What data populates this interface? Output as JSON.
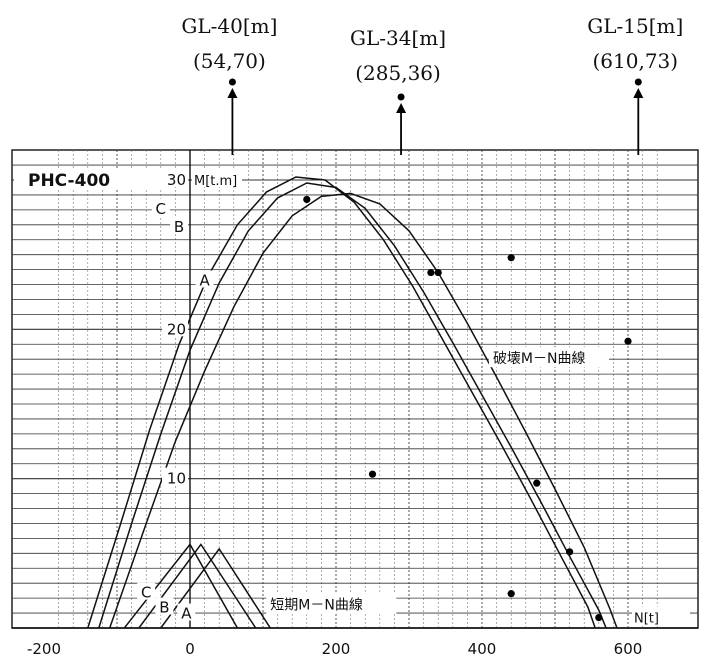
{
  "chart_data": {
    "type": "line",
    "title": "PHC-400",
    "ylabel": "M[t.m]",
    "xlabel": "N[t]",
    "xlim": [
      -230,
      640
    ],
    "ylim": [
      0,
      31
    ],
    "x_ticks": [
      -200,
      0,
      200,
      400,
      600
    ],
    "x_tick_labels": [
      "-200",
      "0",
      "200",
      "400",
      "600"
    ],
    "y_ticks": [
      10,
      20,
      30
    ],
    "y_tick_labels": [
      "10",
      "20",
      "30"
    ],
    "grid": true,
    "series": [
      {
        "name": "A",
        "group": "break",
        "points": [
          [
            -110,
            0
          ],
          [
            -60,
            7
          ],
          [
            -20,
            12.5
          ],
          [
            20,
            17.2
          ],
          [
            60,
            21.5
          ],
          [
            100,
            25.1
          ],
          [
            140,
            27.6
          ],
          [
            180,
            28.9
          ],
          [
            220,
            29.1
          ],
          [
            260,
            28.4
          ],
          [
            300,
            26.6
          ],
          [
            340,
            23.8
          ],
          [
            380,
            20.4
          ],
          [
            420,
            16.8
          ],
          [
            460,
            13.1
          ],
          [
            500,
            9.3
          ],
          [
            540,
            5.4
          ],
          [
            575,
            1.3
          ],
          [
            585,
            0
          ]
        ]
      },
      {
        "name": "B",
        "group": "break",
        "points": [
          [
            -125,
            0
          ],
          [
            -80,
            7
          ],
          [
            -40,
            13
          ],
          [
            0,
            18.6
          ],
          [
            40,
            23.1
          ],
          [
            80,
            26.6
          ],
          [
            120,
            28.8
          ],
          [
            160,
            29.8
          ],
          [
            200,
            29.5
          ],
          [
            240,
            28.1
          ],
          [
            280,
            25.6
          ],
          [
            320,
            22.5
          ],
          [
            360,
            19.1
          ],
          [
            400,
            15.6
          ],
          [
            440,
            12.1
          ],
          [
            480,
            8.5
          ],
          [
            520,
            4.8
          ],
          [
            560,
            1.2
          ],
          [
            570,
            0
          ]
        ]
      },
      {
        "name": "C",
        "group": "break",
        "points": [
          [
            -140,
            0
          ],
          [
            -95,
            7
          ],
          [
            -55,
            13.3
          ],
          [
            -15,
            19
          ],
          [
            25,
            23.6
          ],
          [
            65,
            27
          ],
          [
            105,
            29.2
          ],
          [
            145,
            30.2
          ],
          [
            185,
            30
          ],
          [
            225,
            28.5
          ],
          [
            265,
            26
          ],
          [
            305,
            22.9
          ],
          [
            345,
            19.4
          ],
          [
            385,
            15.9
          ],
          [
            425,
            12.4
          ],
          [
            465,
            8.8
          ],
          [
            505,
            5.1
          ],
          [
            545,
            1.4
          ],
          [
            555,
            0
          ]
        ]
      },
      {
        "name": "A",
        "group": "short",
        "points": [
          [
            -40,
            0
          ],
          [
            40,
            5.3
          ],
          [
            110,
            0
          ]
        ]
      },
      {
        "name": "B",
        "group": "short",
        "points": [
          [
            -70,
            0
          ],
          [
            15,
            5.6
          ],
          [
            90,
            0
          ]
        ]
      },
      {
        "name": "C",
        "group": "short",
        "points": [
          [
            -90,
            0
          ],
          [
            0,
            5.6
          ],
          [
            65,
            0
          ]
        ]
      }
    ],
    "scatter": [
      {
        "x": 160,
        "y": 28.7
      },
      {
        "x": 330,
        "y": 23.8
      },
      {
        "x": 340,
        "y": 23.8
      },
      {
        "x": 440,
        "y": 24.8
      },
      {
        "x": 600,
        "y": 19.2
      },
      {
        "x": 250,
        "y": 10.3
      },
      {
        "x": 475,
        "y": 9.7
      },
      {
        "x": 520,
        "y": 5.1
      },
      {
        "x": 440,
        "y": 2.3
      },
      {
        "x": 560,
        "y": 0.7
      }
    ],
    "annotations": [
      {
        "label": "GL-40[m]",
        "coords": "(54,70)",
        "x": 54
      },
      {
        "label": "GL-34[m]",
        "coords": "(285,36)",
        "x": 285
      },
      {
        "label": "GL-15[m]",
        "coords": "(610,73)",
        "x": 610
      }
    ],
    "curve_labels": {
      "break": "破壊M－N曲線",
      "short": "短期M－N曲線"
    }
  }
}
